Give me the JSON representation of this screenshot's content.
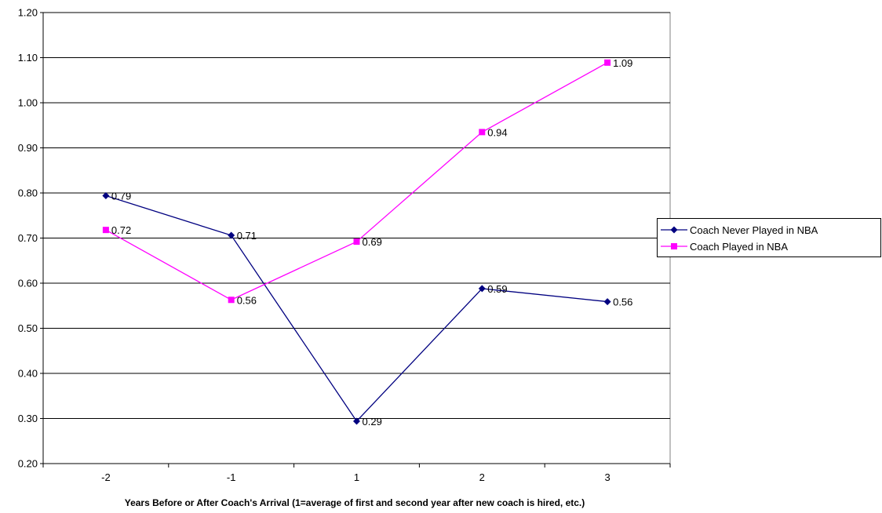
{
  "chart_data": {
    "type": "line",
    "title": "",
    "xlabel": "Years Before or After Coach's Arrival (1=average of first and second year after new coach is hired, etc.)",
    "ylabel": "",
    "categories": [
      "-2",
      "-1",
      "1",
      "2",
      "3"
    ],
    "ylim": [
      0.2,
      1.2
    ],
    "yticks": [
      "0.20",
      "0.30",
      "0.40",
      "0.50",
      "0.60",
      "0.70",
      "0.80",
      "0.90",
      "1.00",
      "1.10",
      "1.20"
    ],
    "grid": true,
    "legend_position": "right",
    "series": [
      {
        "name": "Coach Never Played in NBA",
        "values": [
          0.794,
          0.706,
          0.294,
          0.588,
          0.559
        ],
        "labels": [
          "0.79",
          "0.71",
          "0.29",
          "0.59",
          "0.56"
        ],
        "color": "#000080",
        "marker": "diamond"
      },
      {
        "name": "Coach Played in NBA",
        "values": [
          0.718,
          0.563,
          0.692,
          0.935,
          1.089
        ],
        "labels": [
          "0.72",
          "0.56",
          "0.69",
          "0.94",
          "1.09"
        ],
        "color": "#ff00ff",
        "marker": "square"
      }
    ]
  }
}
